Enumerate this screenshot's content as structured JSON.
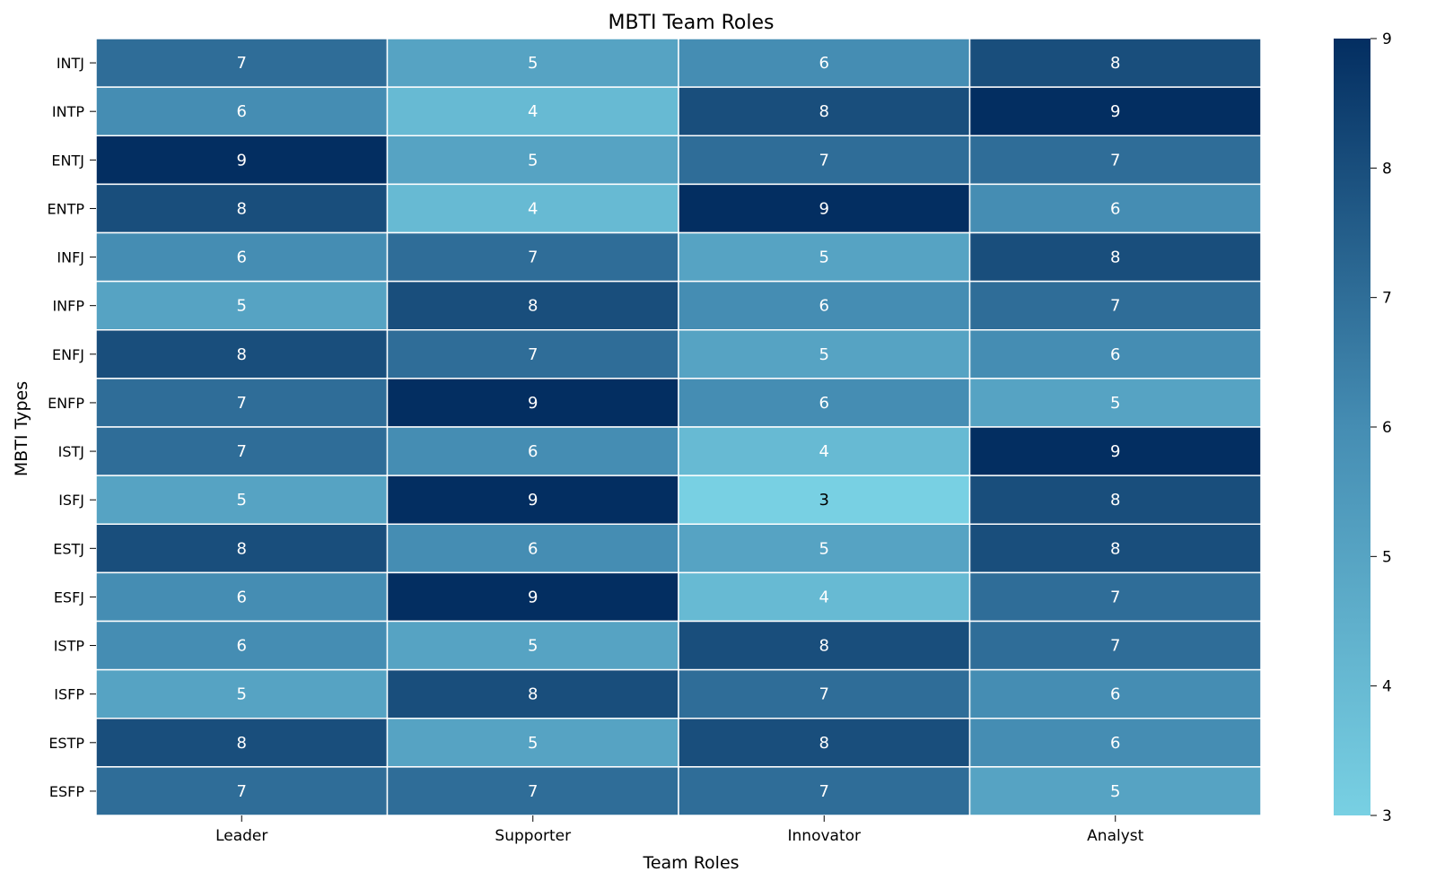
{
  "chart_data": {
    "type": "heatmap",
    "title": "MBTI Team Roles",
    "xlabel": "Team Roles",
    "ylabel": "MBTI Types",
    "columns": [
      "Leader",
      "Supporter",
      "Innovator",
      "Analyst"
    ],
    "rows": [
      "INTJ",
      "INTP",
      "ENTJ",
      "ENTP",
      "INFJ",
      "INFP",
      "ENFJ",
      "ENFP",
      "ISTJ",
      "ISFJ",
      "ESTJ",
      "ESFJ",
      "ISTP",
      "ISFP",
      "ESTP",
      "ESFP"
    ],
    "values": [
      [
        7,
        5,
        6,
        8
      ],
      [
        6,
        4,
        8,
        9
      ],
      [
        9,
        5,
        7,
        7
      ],
      [
        8,
        4,
        9,
        6
      ],
      [
        6,
        7,
        5,
        8
      ],
      [
        5,
        8,
        6,
        7
      ],
      [
        8,
        7,
        5,
        6
      ],
      [
        7,
        9,
        6,
        5
      ],
      [
        7,
        6,
        4,
        9
      ],
      [
        5,
        9,
        3,
        8
      ],
      [
        8,
        6,
        5,
        8
      ],
      [
        6,
        9,
        4,
        7
      ],
      [
        6,
        5,
        8,
        7
      ],
      [
        5,
        8,
        7,
        6
      ],
      [
        8,
        5,
        8,
        6
      ],
      [
        7,
        7,
        7,
        5
      ]
    ],
    "colorbar": {
      "min": 3,
      "max": 9,
      "ticks": [
        3,
        4,
        5,
        6,
        7,
        8,
        9
      ],
      "low_color": "#78d0e3",
      "high_color": "#032e61"
    },
    "grid": false
  }
}
